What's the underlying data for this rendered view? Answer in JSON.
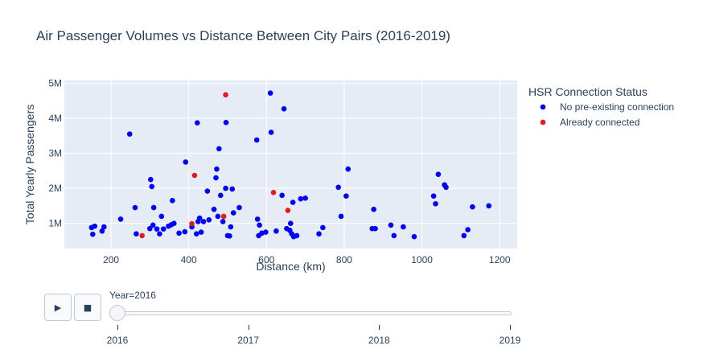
{
  "chart_data": {
    "type": "scatter",
    "title": "Air Passenger Volumes vs Distance Between City Pairs (2016-2019)",
    "xlabel": "Distance (km)",
    "ylabel": "Total Yearly Passengers",
    "xlim": [
      80,
      1245
    ],
    "ylim": [
      280000,
      5080000
    ],
    "x_ticks": [
      200,
      400,
      600,
      800,
      1000,
      1200
    ],
    "x_tick_labels": [
      "200",
      "400",
      "600",
      "800",
      "1000",
      "1200"
    ],
    "y_ticks": [
      1000000,
      2000000,
      3000000,
      4000000,
      5000000
    ],
    "y_tick_labels": [
      "1M",
      "2M",
      "3M",
      "4M",
      "5M"
    ],
    "grid": true,
    "legend_title": "HSR Connection Status",
    "legend_placement": "right",
    "series": [
      {
        "name": "No pre-existing connection",
        "color": "#0000ff",
        "points": [
          [
            150,
            880000
          ],
          [
            153,
            690000
          ],
          [
            158,
            920000
          ],
          [
            177,
            780000
          ],
          [
            182,
            900000
          ],
          [
            225,
            1120000
          ],
          [
            248,
            3550000
          ],
          [
            262,
            1450000
          ],
          [
            265,
            700000
          ],
          [
            300,
            850000
          ],
          [
            302,
            2250000
          ],
          [
            305,
            2050000
          ],
          [
            308,
            950000
          ],
          [
            310,
            1450000
          ],
          [
            318,
            840000
          ],
          [
            325,
            700000
          ],
          [
            330,
            1200000
          ],
          [
            335,
            840000
          ],
          [
            348,
            920000
          ],
          [
            355,
            960000
          ],
          [
            358,
            1650000
          ],
          [
            362,
            1000000
          ],
          [
            375,
            720000
          ],
          [
            390,
            760000
          ],
          [
            392,
            2750000
          ],
          [
            408,
            900000
          ],
          [
            420,
            700000
          ],
          [
            422,
            3870000
          ],
          [
            424,
            1050000
          ],
          [
            428,
            1150000
          ],
          [
            432,
            750000
          ],
          [
            438,
            1050000
          ],
          [
            448,
            1920000
          ],
          [
            452,
            1100000
          ],
          [
            465,
            1400000
          ],
          [
            470,
            2300000
          ],
          [
            472,
            2550000
          ],
          [
            475,
            1200000
          ],
          [
            478,
            3130000
          ],
          [
            482,
            1800000
          ],
          [
            488,
            1050000
          ],
          [
            495,
            2000000
          ],
          [
            496,
            3880000
          ],
          [
            500,
            650000
          ],
          [
            505,
            640000
          ],
          [
            508,
            900000
          ],
          [
            512,
            1980000
          ],
          [
            515,
            1300000
          ],
          [
            530,
            1450000
          ],
          [
            575,
            3380000
          ],
          [
            577,
            1120000
          ],
          [
            580,
            650000
          ],
          [
            582,
            950000
          ],
          [
            588,
            720000
          ],
          [
            598,
            750000
          ],
          [
            610,
            4720000
          ],
          [
            612,
            3600000
          ],
          [
            625,
            780000
          ],
          [
            640,
            1800000
          ],
          [
            645,
            4270000
          ],
          [
            652,
            850000
          ],
          [
            660,
            800000
          ],
          [
            662,
            1000000
          ],
          [
            665,
            700000
          ],
          [
            668,
            1600000
          ],
          [
            670,
            620000
          ],
          [
            678,
            650000
          ],
          [
            688,
            1700000
          ],
          [
            700,
            1720000
          ],
          [
            735,
            700000
          ],
          [
            745,
            880000
          ],
          [
            785,
            2030000
          ],
          [
            792,
            1200000
          ],
          [
            805,
            1780000
          ],
          [
            810,
            2550000
          ],
          [
            872,
            850000
          ],
          [
            876,
            1400000
          ],
          [
            880,
            850000
          ],
          [
            920,
            950000
          ],
          [
            928,
            650000
          ],
          [
            952,
            900000
          ],
          [
            980,
            620000
          ],
          [
            1030,
            1780000
          ],
          [
            1035,
            1560000
          ],
          [
            1042,
            2400000
          ],
          [
            1058,
            2100000
          ],
          [
            1062,
            2030000
          ],
          [
            1108,
            650000
          ],
          [
            1118,
            820000
          ],
          [
            1130,
            1470000
          ],
          [
            1172,
            1500000
          ]
        ]
      },
      {
        "name": "Already connected",
        "color": "#e41a1c",
        "points": [
          [
            280,
            650000
          ],
          [
            408,
            990000
          ],
          [
            415,
            2370000
          ],
          [
            490,
            1200000
          ],
          [
            495,
            4670000
          ],
          [
            618,
            1880000
          ],
          [
            655,
            1370000
          ]
        ]
      }
    ]
  },
  "animation": {
    "play_icon": "play-icon",
    "play_glyph": "▶",
    "stop_icon": "stop-icon",
    "stop_glyph": "■",
    "current_label": "Year=2016",
    "current_index": 0,
    "steps": [
      "2016",
      "2017",
      "2018",
      "2019"
    ]
  }
}
